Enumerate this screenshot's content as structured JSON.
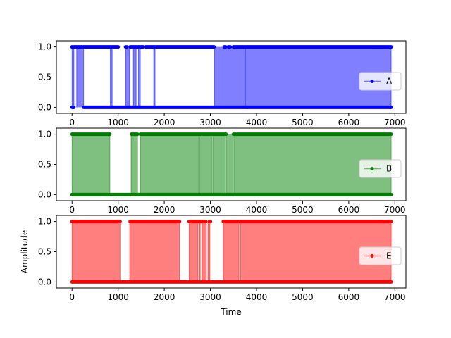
{
  "chart_data": [
    {
      "type": "area",
      "series": [
        {
          "name": "A",
          "color": "#0000ff"
        }
      ],
      "ylim": [
        -0.1,
        1.1
      ],
      "xlim": [
        -340,
        7240
      ],
      "xticks": [
        "0",
        "1000",
        "2000",
        "3000",
        "4000",
        "5000",
        "6000",
        "7000"
      ],
      "yticks": [
        "0.0",
        "0.5",
        "1.0"
      ],
      "xlabel": "",
      "ylabel": "",
      "legend_position": "right",
      "segments_high": [
        [
          0,
          40
        ],
        [
          100,
          250
        ],
        [
          830,
          870
        ],
        [
          1160,
          1250
        ],
        [
          1330,
          1390
        ],
        [
          1440,
          1480
        ],
        [
          1770,
          1800
        ],
        [
          3090,
          3750
        ],
        [
          3760,
          6920
        ]
      ],
      "markers_high": [
        [
          0,
          1000
        ],
        [
          1160,
          1180
        ],
        [
          1260,
          1540
        ],
        [
          1600,
          3080
        ],
        [
          3300,
          3330
        ],
        [
          3390,
          3430
        ],
        [
          3500,
          6920
        ]
      ],
      "markers_low": [
        [
          0,
          40
        ],
        [
          250,
          3800
        ],
        [
          3800,
          6920
        ]
      ],
      "x_end": 6920
    },
    {
      "type": "area",
      "series": [
        {
          "name": "B",
          "color": "#008000"
        }
      ],
      "ylim": [
        -0.1,
        1.1
      ],
      "xlim": [
        -340,
        7240
      ],
      "xticks": [
        "0",
        "1000",
        "2000",
        "3000",
        "4000",
        "5000",
        "6000",
        "7000"
      ],
      "yticks": [
        "0.0",
        "0.5",
        "1.0"
      ],
      "xlabel": "",
      "ylabel": "",
      "legend_position": "right",
      "segments_high": [
        [
          0,
          820
        ],
        [
          1280,
          1420
        ],
        [
          1480,
          2750
        ],
        [
          2770,
          3040
        ],
        [
          3060,
          3320
        ],
        [
          3340,
          3500
        ],
        [
          3520,
          6920
        ]
      ],
      "markers_high": [
        [
          0,
          820
        ],
        [
          1290,
          1420
        ],
        [
          1480,
          3340
        ],
        [
          3500,
          6920
        ]
      ],
      "markers_low": [
        [
          0,
          6920
        ]
      ],
      "x_end": 6920
    },
    {
      "type": "area",
      "series": [
        {
          "name": "E",
          "color": "#ff0000"
        }
      ],
      "ylim": [
        -0.1,
        1.1
      ],
      "xlim": [
        -340,
        7240
      ],
      "xticks": [
        "0",
        "1000",
        "2000",
        "3000",
        "4000",
        "5000",
        "6000",
        "7000"
      ],
      "yticks": [
        "0.0",
        "0.5",
        "1.0"
      ],
      "xlabel": "Time",
      "ylabel": "Amplitude",
      "legend_position": "right",
      "segments_high": [
        [
          0,
          1040
        ],
        [
          1250,
          2330
        ],
        [
          2540,
          2730
        ],
        [
          2760,
          2780
        ],
        [
          2820,
          2910
        ],
        [
          2950,
          2990
        ],
        [
          3280,
          3620
        ],
        [
          3650,
          6920
        ]
      ],
      "markers_high": [
        [
          0,
          1040
        ],
        [
          1260,
          2330
        ],
        [
          2540,
          2900
        ],
        [
          2980,
          3000
        ],
        [
          3280,
          6920
        ]
      ],
      "markers_low": [
        [
          0,
          6920
        ]
      ],
      "x_end": 6920
    }
  ]
}
